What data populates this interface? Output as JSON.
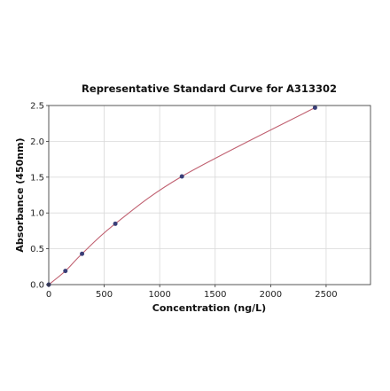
{
  "chart_data": {
    "type": "scatter",
    "title": "Representative Standard Curve for A313302",
    "xlabel": "Concentration (ng/L)",
    "ylabel": "Absorbance (450nm)",
    "xlim": [
      0,
      2900
    ],
    "ylim": [
      0,
      2.5
    ],
    "x_ticks": [
      0,
      500,
      1000,
      1500,
      2000,
      2500
    ],
    "y_ticks": [
      0.0,
      0.5,
      1.0,
      1.5,
      2.0,
      2.5
    ],
    "x_tick_labels": [
      "0",
      "500",
      "1000",
      "1500",
      "2000",
      "2500"
    ],
    "y_tick_labels": [
      "0.0",
      "0.5",
      "1.0",
      "1.5",
      "2.0",
      "2.5"
    ],
    "grid": true,
    "series": [
      {
        "points": [
          {
            "x": 0,
            "y": 0.0
          },
          {
            "x": 150,
            "y": 0.19
          },
          {
            "x": 300,
            "y": 0.43
          },
          {
            "x": 600,
            "y": 0.85
          },
          {
            "x": 1200,
            "y": 1.51
          },
          {
            "x": 2400,
            "y": 2.47
          }
        ],
        "fit_curve": true,
        "point_color": "#3a3f78",
        "curve_color": "#c06070"
      }
    ]
  }
}
